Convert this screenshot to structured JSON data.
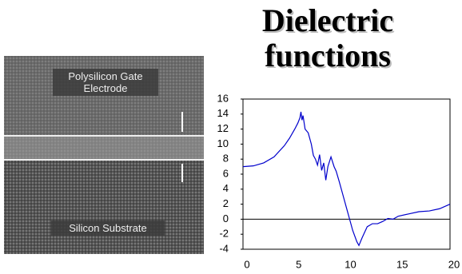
{
  "chart_data": {
    "type": "line",
    "title": "Dielectric functions",
    "x": [
      0,
      1,
      2,
      3,
      4,
      4.5,
      5,
      5.3,
      5.5,
      5.6,
      5.7,
      5.8,
      6,
      6.3,
      6.6,
      6.8,
      7,
      7.2,
      7.4,
      7.6,
      7.8,
      8,
      8.2,
      8.5,
      8.8,
      9,
      9.3,
      9.6,
      10,
      10.3,
      10.6,
      11,
      11.2,
      11.5,
      12,
      12.5,
      13,
      13.5,
      14,
      14.5,
      15,
      16,
      17,
      18,
      19,
      20
    ],
    "values": [
      7,
      7.1,
      7.5,
      8.3,
      9.8,
      10.8,
      12,
      12.8,
      13.5,
      14.3,
      13.2,
      13.8,
      12,
      11.5,
      10,
      8.5,
      8,
      7.2,
      8.6,
      6.5,
      7.5,
      5.2,
      7,
      8.3,
      7,
      6.4,
      5,
      3.5,
      1.5,
      0,
      -1.5,
      -3,
      -3.5,
      -2.5,
      -1,
      -0.6,
      -0.6,
      -0.3,
      0.1,
      0,
      0.4,
      0.7,
      1,
      1.1,
      1.4,
      2
    ],
    "color": "#0000cc",
    "xlim": [
      0,
      20
    ],
    "xticks": [
      0,
      5,
      10,
      15,
      20
    ],
    "ylim": [
      -4,
      16
    ],
    "yticks": [
      -4,
      -2,
      0,
      2,
      4,
      6,
      8,
      10,
      12,
      14,
      16
    ],
    "grid": false
  },
  "image": {
    "labels": [
      "Polysilicon Gate Electrode",
      "Silicon Substrate"
    ]
  }
}
